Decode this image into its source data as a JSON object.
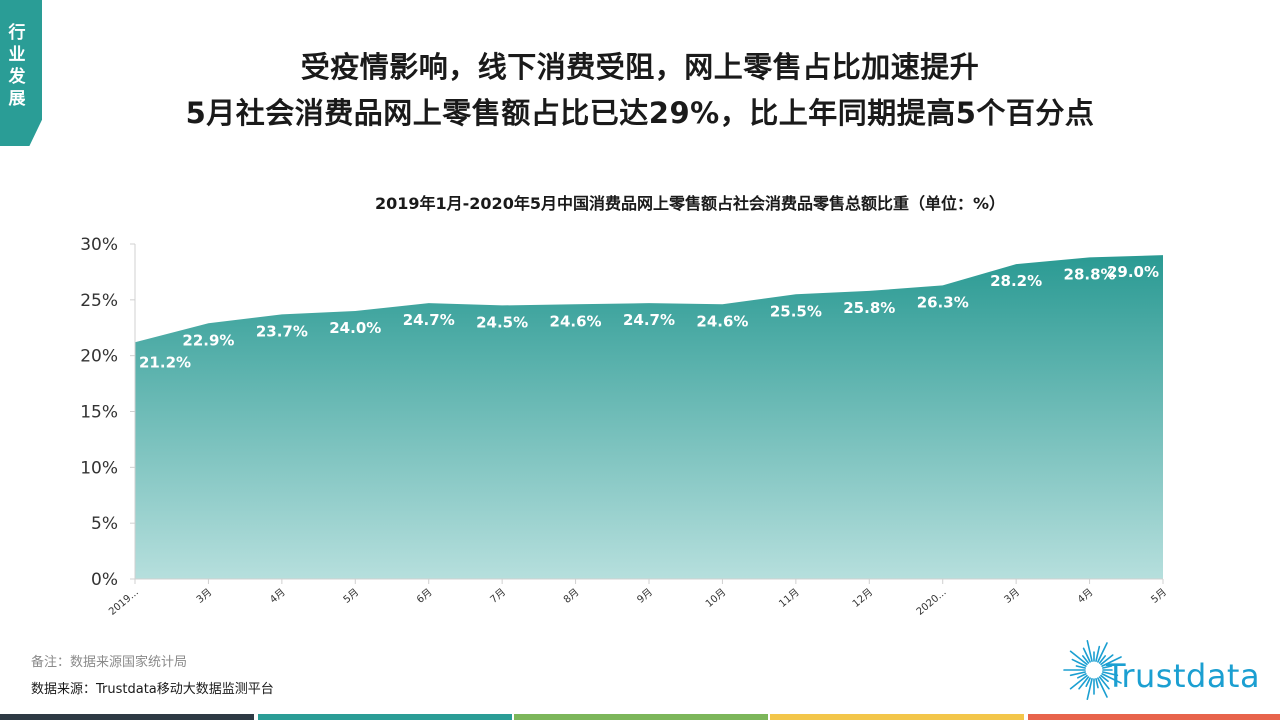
{
  "section_tab": {
    "label": "行业发展"
  },
  "headline": {
    "line1": "受疫情影响，线下消费受阻，网上零售占比加速提升",
    "line2": "5月社会消费品网上零售额占比已达29%，比上年同期提高5个百分点"
  },
  "chart_data": {
    "type": "area",
    "title": "2019年1月-2020年5月中国消费品网上零售额占社会消费品零售总额比重（单位：%）",
    "xlabel": "",
    "ylabel": "",
    "x_tick_labels": [
      "2019...",
      "3月",
      "4月",
      "5月",
      "6月",
      "7月",
      "8月",
      "9月",
      "10月",
      "11月",
      "12月",
      "2020...",
      "3月",
      "4月",
      "5月"
    ],
    "values": [
      21.2,
      22.9,
      23.7,
      24.0,
      24.7,
      24.5,
      24.6,
      24.7,
      24.6,
      25.5,
      25.8,
      26.3,
      28.2,
      28.8,
      29.0
    ],
    "data_labels": [
      "21.2%",
      "22.9%",
      "23.7%",
      "24.0%",
      "24.7%",
      "24.5%",
      "24.6%",
      "24.7%",
      "24.6%",
      "25.5%",
      "25.8%",
      "26.3%",
      "28.2%",
      "28.8%",
      "29.0%"
    ],
    "y_tick_labels": [
      "0%",
      "5%",
      "10%",
      "15%",
      "20%",
      "25%",
      "30%"
    ],
    "ylim": [
      0,
      30
    ],
    "grid": false,
    "legend": false,
    "colors": {
      "area_top": "#2a9a93",
      "area_bottom": "#b6dfdd",
      "data_label": "#ffffff"
    }
  },
  "footnote": {
    "note": "备注：数据来源国家统计局",
    "source": "数据来源：Trustdata移动大数据监测平台"
  },
  "brand": {
    "name": "Trustdata",
    "icon": "sunburst-logo-icon",
    "color": "#1b9fd1"
  },
  "colors": {
    "accent": "#2a9d96",
    "footer": [
      "#2e3a44",
      "#2a9d96",
      "#7cb65a",
      "#f3c64a",
      "#e8644c"
    ]
  }
}
